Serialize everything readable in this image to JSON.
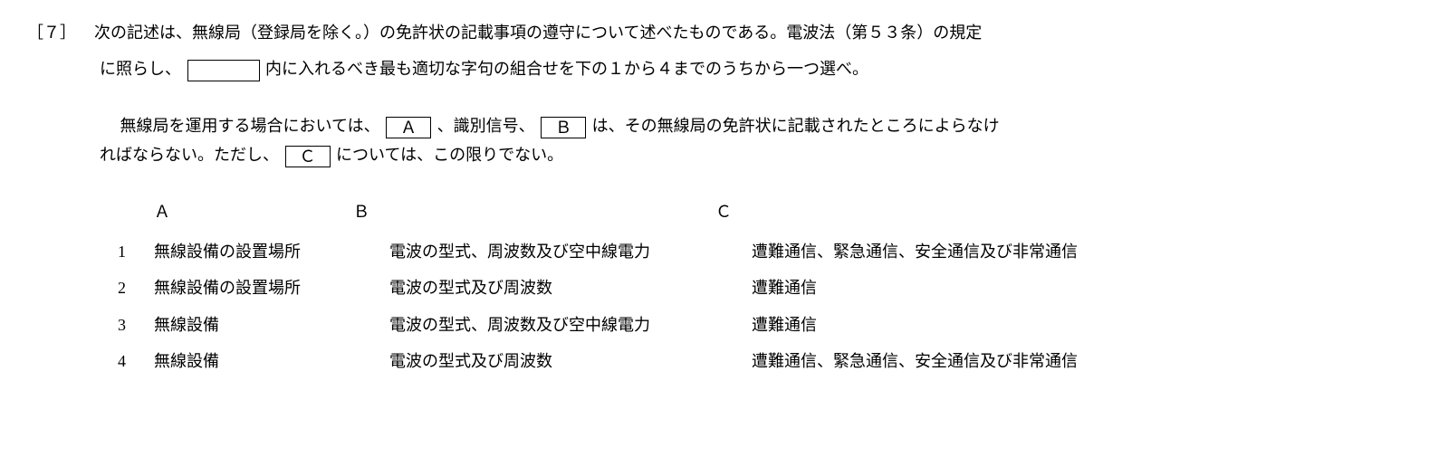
{
  "question": {
    "number": "［７］",
    "line1": "次の記述は、無線局（登録局を除く。）の免許状の記載事項の遵守について述べたものである。電波法（第５３条）の規定",
    "line2": "に照らし、",
    "line2_after": "内に入れるべき最も適切な字句の組合せを下の１から４までのうちから一つ選べ。"
  },
  "body": {
    "line1_before": "無線局を運用する場合においては、",
    "blank_a": "Ａ",
    "line1_mid": "、識別信号、",
    "blank_b": "Ｂ",
    "line1_after": "は、その無線局の免許状に記載されたところによらなけ",
    "line2_before": "ればならない。ただし、",
    "blank_c": "Ｃ",
    "line2_after": "については、この限りでない。"
  },
  "headers": {
    "a": "Ａ",
    "b": "Ｂ",
    "c": "Ｃ"
  },
  "choices": [
    {
      "num": "1",
      "a": "無線設備の設置場所",
      "b": "電波の型式、周波数及び空中線電力",
      "c": "遭難通信、緊急通信、安全通信及び非常通信"
    },
    {
      "num": "2",
      "a": "無線設備の設置場所",
      "b": "電波の型式及び周波数",
      "c": "遭難通信"
    },
    {
      "num": "3",
      "a": "無線設備",
      "b": "電波の型式、周波数及び空中線電力",
      "c": "遭難通信"
    },
    {
      "num": "4",
      "a": "無線設備",
      "b": "電波の型式及び周波数",
      "c": "遭難通信、緊急通信、安全通信及び非常通信"
    }
  ]
}
